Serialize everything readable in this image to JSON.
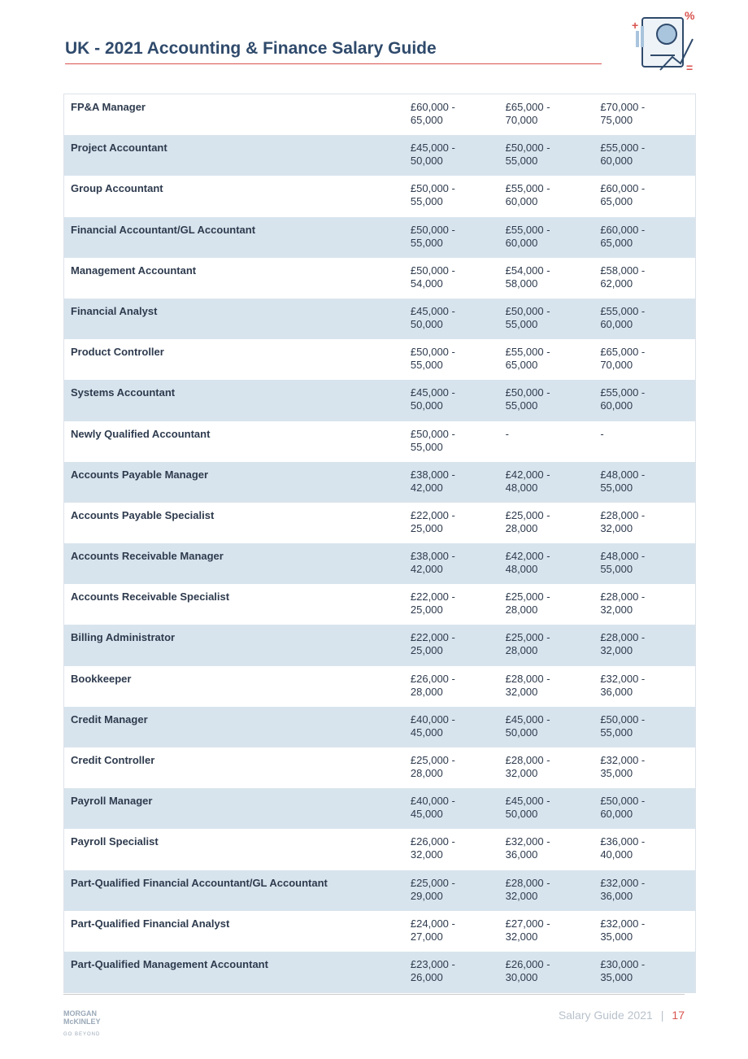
{
  "header": {
    "title": "UK - 2021 Accounting & Finance Salary Guide"
  },
  "table": {
    "rows": [
      [
        "FP&A Manager",
        "£60,000 - 65,000",
        "£65,000 - 70,000",
        "£70,000 - 75,000"
      ],
      [
        "Project Accountant",
        "£45,000 - 50,000",
        "£50,000 - 55,000",
        "£55,000 - 60,000"
      ],
      [
        "Group Accountant",
        "£50,000 - 55,000",
        "£55,000 - 60,000",
        "£60,000 - 65,000"
      ],
      [
        "Financial Accountant/GL Accountant",
        "£50,000 - 55,000",
        "£55,000 - 60,000",
        "£60,000 - 65,000"
      ],
      [
        "Management Accountant",
        "£50,000 - 54,000",
        "£54,000 - 58,000",
        "£58,000 - 62,000"
      ],
      [
        "Financial Analyst",
        "£45,000 - 50,000",
        "£50,000 - 55,000",
        "£55,000 - 60,000"
      ],
      [
        "Product Controller",
        "£50,000 - 55,000",
        "£55,000 - 65,000",
        "£65,000 - 70,000"
      ],
      [
        "Systems Accountant",
        "£45,000 - 50,000",
        "£50,000 - 55,000",
        "£55,000 - 60,000"
      ],
      [
        "Newly Qualified Accountant",
        "£50,000 - 55,000",
        "-",
        "-"
      ],
      [
        "Accounts Payable Manager",
        "£38,000 - 42,000",
        "£42,000 - 48,000",
        "£48,000 - 55,000"
      ],
      [
        "Accounts Payable Specialist",
        "£22,000 - 25,000",
        "£25,000 - 28,000",
        "£28,000 - 32,000"
      ],
      [
        "Accounts Receivable Manager",
        "£38,000 - 42,000",
        "£42,000 - 48,000",
        "£48,000 - 55,000"
      ],
      [
        "Accounts Receivable Specialist",
        "£22,000 - 25,000",
        "£25,000 - 28,000",
        "£28,000 - 32,000"
      ],
      [
        "Billing Administrator",
        "£22,000 - 25,000",
        "£25,000 - 28,000",
        "£28,000 - 32,000"
      ],
      [
        "Bookkeeper",
        "£26,000 - 28,000",
        "£28,000 - 32,000",
        "£32,000 - 36,000"
      ],
      [
        "Credit Manager",
        "£40,000 - 45,000",
        "£45,000 - 50,000",
        "£50,000 - 55,000"
      ],
      [
        "Credit Controller",
        "£25,000 - 28,000",
        "£28,000 - 32,000",
        "£32,000 - 35,000"
      ],
      [
        "Payroll Manager",
        "£40,000 - 45,000",
        "£45,000 - 50,000",
        "£50,000 - 60,000"
      ],
      [
        "Payroll Specialist",
        "£26,000 - 32,000",
        "£32,000 - 36,000",
        "£36,000 - 40,000"
      ],
      [
        "Part-Qualified Financial Accountant/GL Accountant",
        "£25,000 - 29,000",
        "£28,000 - 32,000",
        "£32,000 - 36,000"
      ],
      [
        "Part-Qualified Financial Analyst",
        "£24,000 - 27,000",
        "£27,000 - 32,000",
        "£32,000 - 35,000"
      ],
      [
        "Part-Qualified Management Accountant",
        "£23,000 - 26,000",
        "£26,000 - 30,000",
        "£30,000 - 35,000"
      ]
    ]
  },
  "footer": {
    "guide": "Salary Guide 2021",
    "separator": "|",
    "page": "17",
    "logo_top": "MORGAN",
    "logo_bottom": "McKINLEY",
    "tagline": "GO BEYOND"
  }
}
